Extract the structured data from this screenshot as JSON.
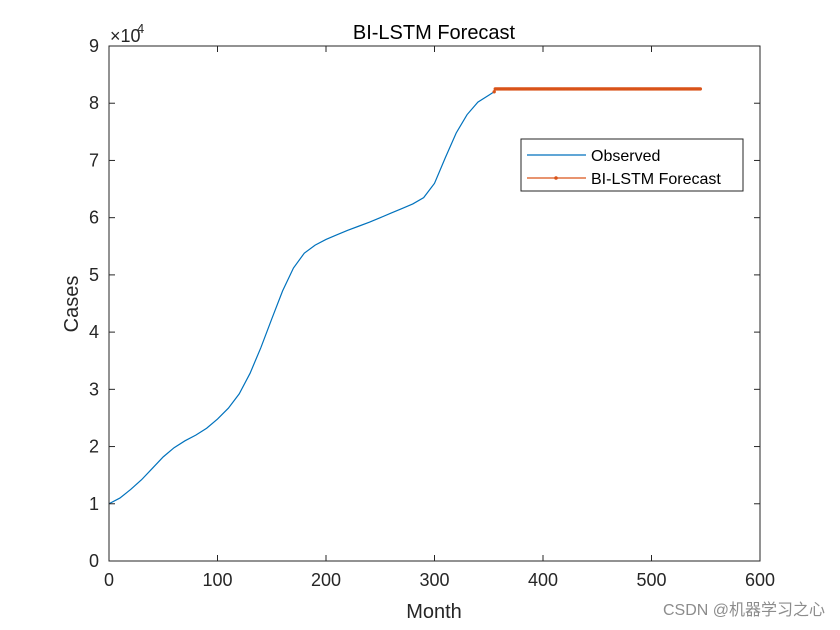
{
  "chart_data": {
    "type": "line",
    "title": "BI-LSTM Forecast",
    "xlabel": "Month",
    "ylabel": "Cases",
    "xlim": [
      0,
      600
    ],
    "ylim": [
      0,
      90000
    ],
    "xticks": [
      0,
      100,
      200,
      300,
      400,
      500,
      600
    ],
    "xtick_labels": [
      "0",
      "100",
      "200",
      "300",
      "400",
      "500",
      "600"
    ],
    "yticks": [
      0,
      10000,
      20000,
      30000,
      40000,
      50000,
      60000,
      70000,
      80000,
      90000
    ],
    "ytick_labels": [
      "0",
      "1",
      "2",
      "3",
      "4",
      "5",
      "6",
      "7",
      "8",
      "9"
    ],
    "y_exponent_label": "×10",
    "y_exponent_power": "4",
    "grid": false,
    "legend_position": "upper-right",
    "series": [
      {
        "name": "Observed",
        "color": "#0072BD",
        "marker": "none",
        "x": [
          0,
          10,
          20,
          30,
          40,
          50,
          60,
          70,
          80,
          90,
          100,
          110,
          120,
          130,
          140,
          150,
          160,
          170,
          180,
          190,
          200,
          210,
          220,
          230,
          240,
          250,
          260,
          270,
          280,
          290,
          300,
          310,
          320,
          330,
          340,
          350,
          355
        ],
        "y": [
          10000,
          11000,
          12500,
          14200,
          16200,
          18200,
          19800,
          21000,
          22000,
          23200,
          24800,
          26700,
          29200,
          32800,
          37300,
          42300,
          47200,
          51200,
          53800,
          55200,
          56200,
          57000,
          57800,
          58500,
          59200,
          60000,
          60800,
          61600,
          62400,
          63500,
          66000,
          70500,
          74800,
          78000,
          80200,
          81400,
          82000
        ]
      },
      {
        "name": "BI-LSTM Forecast",
        "color": "#D95319",
        "marker": "dot",
        "x_start": 355,
        "x_end": 545,
        "level_start": 82000,
        "level": 82500
      }
    ]
  },
  "watermark": "CSDN @机器学习之心"
}
